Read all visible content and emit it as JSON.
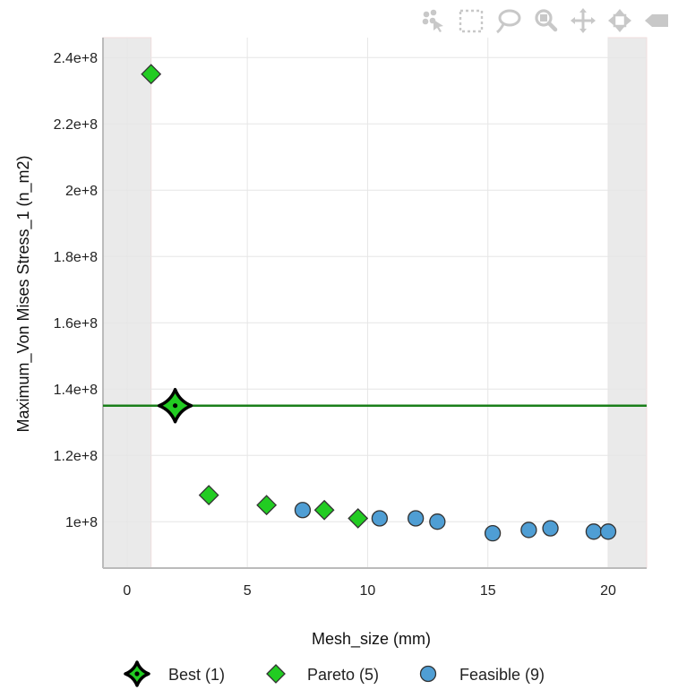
{
  "toolbar": {
    "icons": [
      "select-points-icon",
      "box-select-icon",
      "lasso-select-icon",
      "zoom-icon",
      "pan-icon",
      "autoscale-icon",
      "reset-axes-icon"
    ],
    "color": "#c8c8c8"
  },
  "chart_data": {
    "type": "scatter",
    "xlabel": "Mesh_size (mm)",
    "ylabel": "Maximum_Von Mises Stress_1 (n_m2)",
    "xlim": [
      -1.0,
      21.6
    ],
    "ylim": [
      86000000,
      246000000
    ],
    "x_ticks": [
      0,
      5,
      10,
      15,
      20
    ],
    "x_tick_labels": [
      "0",
      "5",
      "10",
      "15",
      "20"
    ],
    "y_ticks": [
      100000000,
      120000000,
      140000000,
      160000000,
      180000000,
      200000000,
      220000000,
      240000000
    ],
    "y_tick_labels": [
      "1e+8",
      "1.2e+8",
      "1.4e+8",
      "1.6e+8",
      "1.8e+8",
      "2e+8",
      "2.2e+8",
      "2.4e+8"
    ],
    "grid": true,
    "out_of_range_bands": [
      [
        -1.0,
        1.0
      ],
      [
        20.0,
        21.6
      ]
    ],
    "constraint_line": {
      "y": 135000000,
      "color": "#1a7f1a"
    },
    "legend_position": "bottom",
    "series": [
      {
        "name": "Best (1)",
        "marker": "star4",
        "color": "#22cc22",
        "points": [
          [
            2.0,
            135000000
          ]
        ]
      },
      {
        "name": "Pareto (5)",
        "marker": "diamond",
        "color": "#22cc22",
        "points": [
          [
            1.0,
            235000000
          ],
          [
            3.4,
            108000000
          ],
          [
            5.8,
            105000000
          ],
          [
            8.2,
            103500000
          ],
          [
            9.6,
            101000000
          ]
        ]
      },
      {
        "name": "Feasible (9)",
        "marker": "circle",
        "color": "#4f9ed4",
        "points": [
          [
            7.3,
            103500000
          ],
          [
            10.5,
            101000000
          ],
          [
            12.0,
            101000000
          ],
          [
            12.9,
            100000000
          ],
          [
            15.2,
            96500000
          ],
          [
            16.7,
            97500000
          ],
          [
            17.6,
            98000000
          ],
          [
            19.4,
            97000000
          ],
          [
            20.0,
            97000000
          ]
        ]
      }
    ]
  }
}
